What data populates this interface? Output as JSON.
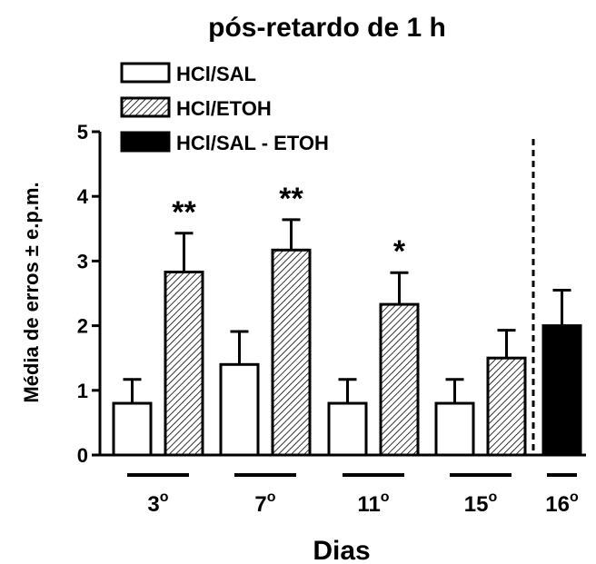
{
  "chart_data": {
    "type": "bar",
    "title": "pós-retardo de 1 h",
    "xlabel": "Dias",
    "ylabel": "Média de erros ± e.p.m.",
    "ylim": [
      0,
      5
    ],
    "yticks": [
      "0",
      "1",
      "2",
      "3",
      "4",
      "5"
    ],
    "grid": false,
    "legend_position": "top-left",
    "categories": [
      {
        "label": "3",
        "sup": "o"
      },
      {
        "label": "7",
        "sup": "o"
      },
      {
        "label": "11",
        "sup": "o"
      },
      {
        "label": "15",
        "sup": "o"
      },
      {
        "label": "16",
        "sup": "o"
      }
    ],
    "series": [
      {
        "name": "HCl/SAL",
        "fill": "white",
        "values": [
          0.8,
          1.4,
          0.8,
          0.8,
          null
        ],
        "errors": [
          0.37,
          0.51,
          0.37,
          0.37,
          null
        ]
      },
      {
        "name": "HCl/ETOH",
        "fill": "hatched",
        "values": [
          2.83,
          3.17,
          2.33,
          1.5,
          null
        ],
        "errors": [
          0.6,
          0.47,
          0.49,
          0.43,
          null
        ]
      },
      {
        "name": "HCl/SAL - ETOH",
        "fill": "black",
        "values": [
          null,
          null,
          null,
          null,
          2.0
        ],
        "errors": [
          null,
          null,
          null,
          null,
          0.55
        ]
      }
    ],
    "significance": [
      "**",
      "**",
      "*",
      "",
      ""
    ],
    "reference_line": {
      "style": "dashed",
      "position": "between 15 and 16"
    }
  }
}
